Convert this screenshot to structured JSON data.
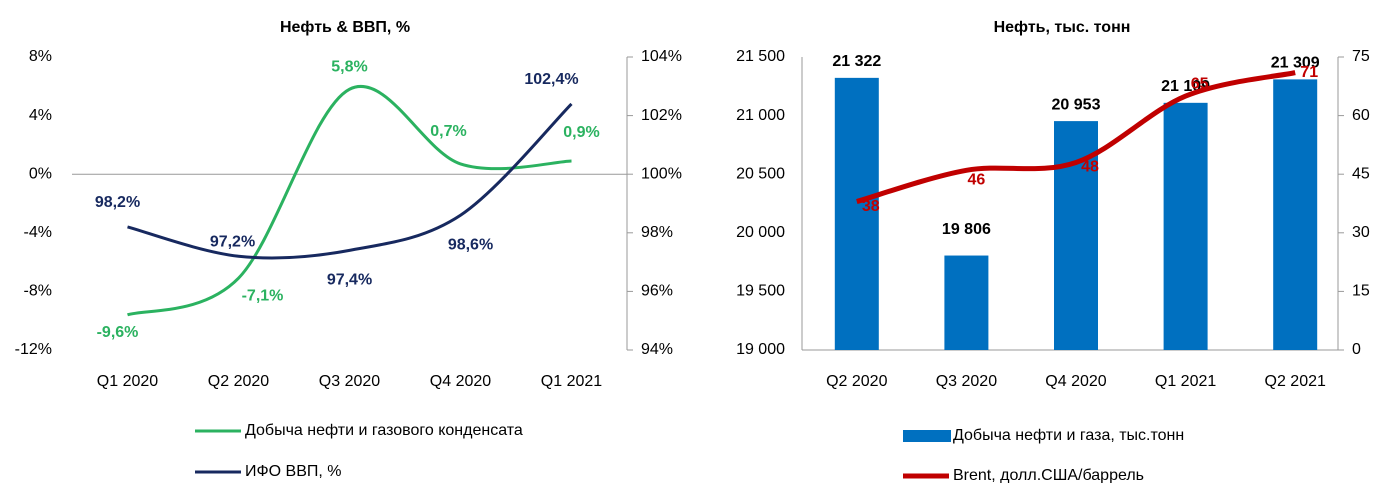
{
  "chart_data": [
    {
      "type": "line",
      "title": "Нефть & ВВП, %",
      "categories": [
        "Q1 2020",
        "Q2 2020",
        "Q3 2020",
        "Q4 2020",
        "Q1 2021"
      ],
      "series": [
        {
          "name": "Добыча нефти и газового конденсата",
          "color": "#2bb260",
          "axis": "y",
          "values": [
            -9.6,
            -7.1,
            5.8,
            0.7,
            0.9
          ],
          "value_labels": [
            "-9,6%",
            "-7,1%",
            "5,8%",
            "0,7%",
            "0,9%"
          ]
        },
        {
          "name": "ИФО ВВП, %",
          "color": "#17295f",
          "axis": "y2",
          "values": [
            98.2,
            97.2,
            97.4,
            98.6,
            102.4
          ],
          "value_labels": [
            "98,2%",
            "97,2%",
            "97,4%",
            "98,6%",
            "102,4%"
          ]
        }
      ],
      "ylim": [
        -12,
        8
      ],
      "yticks": [
        {
          "value": -12,
          "label": "-12%"
        },
        {
          "value": -8,
          "label": "-8%"
        },
        {
          "value": -4,
          "label": "-4%"
        },
        {
          "value": 0,
          "label": "0%"
        },
        {
          "value": 4,
          "label": "4%"
        },
        {
          "value": 8,
          "label": "8%"
        }
      ],
      "y2lim": [
        94,
        104
      ],
      "y2ticks": [
        {
          "value": 94,
          "label": "94%"
        },
        {
          "value": 96,
          "label": "96%"
        },
        {
          "value": 98,
          "label": "98%"
        },
        {
          "value": 100,
          "label": "100%"
        },
        {
          "value": 102,
          "label": "102%"
        },
        {
          "value": 104,
          "label": "104%"
        }
      ],
      "legend": "bottom"
    },
    {
      "type": "bar",
      "title": "Нефть, тыс. тонн",
      "categories": [
        "Q2 2020",
        "Q3 2020",
        "Q4 2020",
        "Q1 2021",
        "Q2 2021"
      ],
      "series": [
        {
          "name": "Добыча нефти и газа, тыс.тонн",
          "color": "#0070c0",
          "axis": "y",
          "type": "bar",
          "values": [
            21322,
            19806,
            20953,
            21109,
            21309
          ],
          "value_labels": [
            "21 322",
            "19 806",
            "20 953",
            "21 109",
            "21 309"
          ]
        },
        {
          "name": "Brent, долл.США/баррель",
          "color": "#c00000",
          "axis": "y2",
          "type": "line",
          "values": [
            38,
            46,
            48,
            65,
            71
          ]
        }
      ],
      "ylim": [
        19000,
        21500
      ],
      "yticks": [
        {
          "value": 19000,
          "label": "19 000"
        },
        {
          "value": 19500,
          "label": "19 500"
        },
        {
          "value": 20000,
          "label": "20 000"
        },
        {
          "value": 20500,
          "label": "20 500"
        },
        {
          "value": 21000,
          "label": "21 000"
        },
        {
          "value": 21500,
          "label": "21 500"
        }
      ],
      "y2lim": [
        0,
        75
      ],
      "y2ticks": [
        0,
        15,
        30,
        45,
        60,
        75
      ],
      "legend": "bottom"
    }
  ]
}
